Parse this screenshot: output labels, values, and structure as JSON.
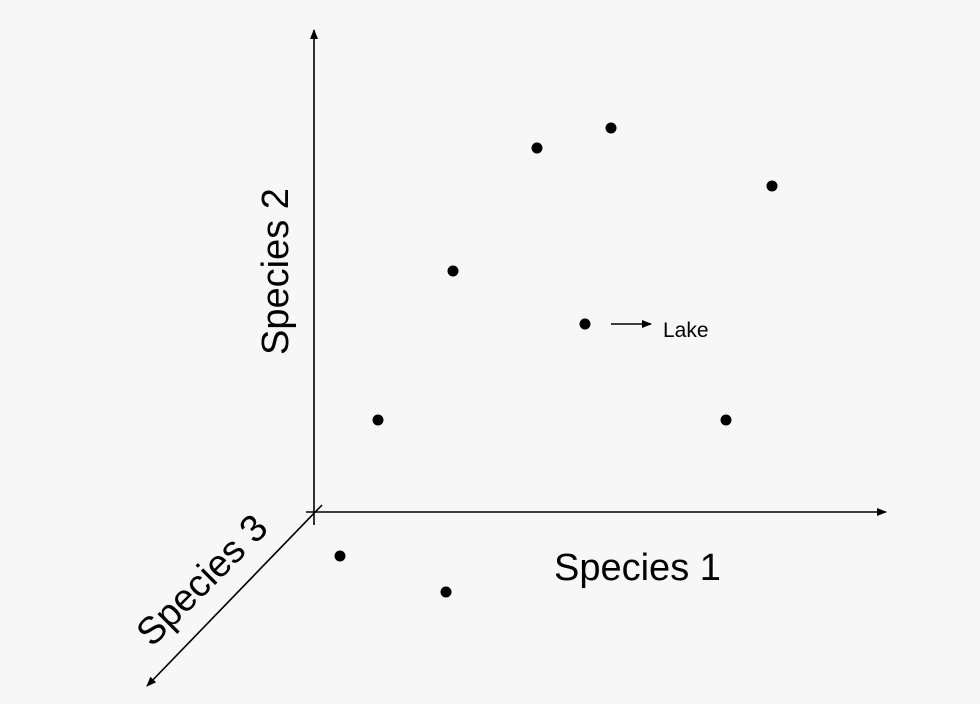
{
  "axes": {
    "x_label": "Species 1",
    "y_label": "Species 2",
    "z_label": "Species 3"
  },
  "annotation": {
    "label": "Lake",
    "point_index": 5
  },
  "colors": {
    "ink": "#000000",
    "background": "#f7f7f7"
  },
  "points_count_shown": 9
}
